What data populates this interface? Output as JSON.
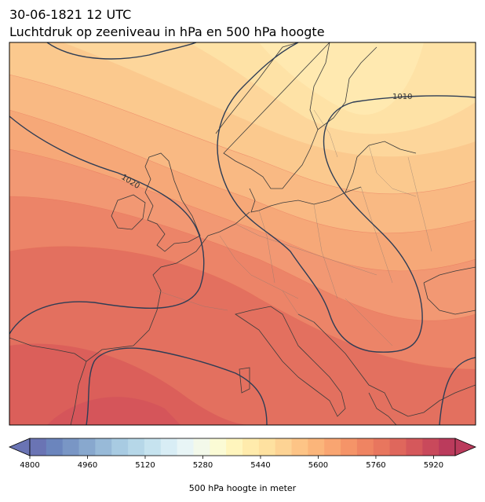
{
  "title": {
    "line1": "30-06-1821 12 UTC",
    "line2": "Luchtdruk op zeeniveau in hPa en 500 hPa hoogte"
  },
  "isobar_labels": [
    "1010",
    "1020"
  ],
  "colorbar": {
    "label": "500 hPa hoogte in meter",
    "min": 4800,
    "max": 5980,
    "step": 40,
    "ticks": [
      "4800",
      "4960",
      "5120",
      "5280",
      "5440",
      "5600",
      "5760",
      "5920"
    ],
    "colors": [
      "#6a74b4",
      "#6b85bd",
      "#7996c5",
      "#88a8ce",
      "#98bad8",
      "#a8cbe2",
      "#b6d7e8",
      "#c6e3ef",
      "#d8edf5",
      "#e8f5f6",
      "#f3f9ea",
      "#fbfbd5",
      "#fff5bd",
      "#ffebac",
      "#fee1a0",
      "#fdd394",
      "#fdc486",
      "#fbb57a",
      "#f9a571",
      "#f59468",
      "#ef8462",
      "#e8765e",
      "#df675c",
      "#d5585b",
      "#c9495b",
      "#bb3b5c"
    ],
    "extend": "both"
  },
  "field_colors": {
    "high": "#fde7ae",
    "mid": "#fbc88b",
    "low": "#ec8468",
    "lowest": "#df615d",
    "isobar": "#2e3d55",
    "coast": "#3b3b3b",
    "border": "#8b7a70"
  }
}
